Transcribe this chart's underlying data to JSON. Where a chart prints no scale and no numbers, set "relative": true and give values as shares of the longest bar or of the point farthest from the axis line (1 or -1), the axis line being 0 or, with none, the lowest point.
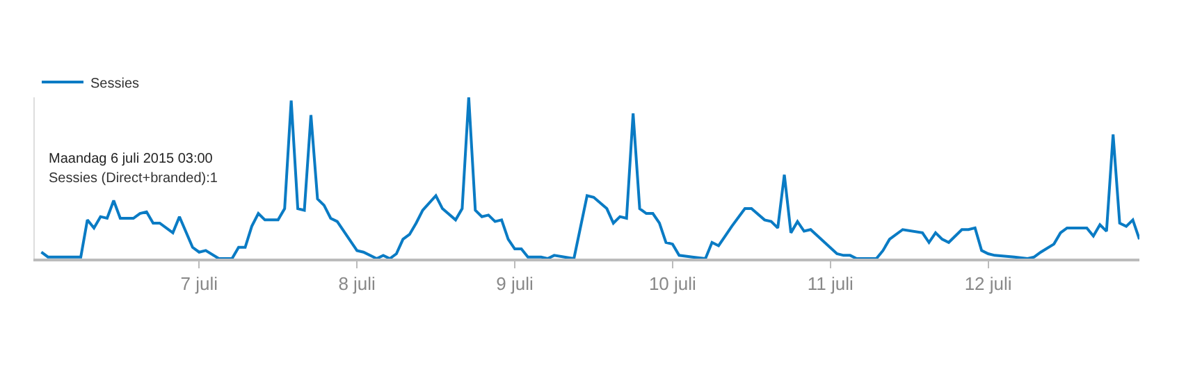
{
  "chart_data": {
    "type": "line",
    "relative": true,
    "legend": "top left",
    "marker": "none",
    "line_style": "solid",
    "x": [
      "2015-07-06T00:00",
      "2015-07-06T01:00",
      "2015-07-06T03:00",
      "2015-07-06T06:00",
      "2015-07-06T07:00",
      "2015-07-06T08:00",
      "2015-07-06T09:00",
      "2015-07-06T10:00",
      "2015-07-06T11:00",
      "2015-07-06T12:00",
      "2015-07-06T14:00",
      "2015-07-06T15:00",
      "2015-07-06T16:00",
      "2015-07-06T17:00",
      "2015-07-06T18:00",
      "2015-07-06T20:00",
      "2015-07-06T21:00",
      "2015-07-06T23:00",
      "2015-07-07T00:00",
      "2015-07-07T01:00",
      "2015-07-07T03:00",
      "2015-07-07T05:00",
      "2015-07-07T06:00",
      "2015-07-07T07:00",
      "2015-07-07T08:00",
      "2015-07-07T09:00",
      "2015-07-07T10:00",
      "2015-07-07T12:00",
      "2015-07-07T13:00",
      "2015-07-07T14:00",
      "2015-07-07T15:00",
      "2015-07-07T16:00",
      "2015-07-07T17:00",
      "2015-07-07T18:00",
      "2015-07-07T19:00",
      "2015-07-07T20:00",
      "2015-07-07T21:00",
      "2015-07-08T00:00",
      "2015-07-08T01:00",
      "2015-07-08T03:00",
      "2015-07-08T04:00",
      "2015-07-08T05:00",
      "2015-07-08T06:00",
      "2015-07-08T07:00",
      "2015-07-08T08:00",
      "2015-07-08T09:00",
      "2015-07-08T10:00",
      "2015-07-08T12:00",
      "2015-07-08T13:00",
      "2015-07-08T15:00",
      "2015-07-08T16:00",
      "2015-07-08T17:00",
      "2015-07-08T18:00",
      "2015-07-08T19:00",
      "2015-07-08T20:00",
      "2015-07-08T21:00",
      "2015-07-08T22:00",
      "2015-07-08T23:00",
      "2015-07-09T00:00",
      "2015-07-09T01:00",
      "2015-07-09T02:00",
      "2015-07-09T04:00",
      "2015-07-09T05:00",
      "2015-07-09T06:00",
      "2015-07-09T09:00",
      "2015-07-09T11:00",
      "2015-07-09T12:00",
      "2015-07-09T14:00",
      "2015-07-09T15:00",
      "2015-07-09T16:00",
      "2015-07-09T17:00",
      "2015-07-09T18:00",
      "2015-07-09T19:00",
      "2015-07-09T20:00",
      "2015-07-09T21:00",
      "2015-07-09T22:00",
      "2015-07-09T23:00",
      "2015-07-10T00:00",
      "2015-07-10T01:00",
      "2015-07-10T03:00",
      "2015-07-10T05:00",
      "2015-07-10T06:00",
      "2015-07-10T07:00",
      "2015-07-10T08:00",
      "2015-07-10T09:00",
      "2015-07-10T11:00",
      "2015-07-10T12:00",
      "2015-07-10T14:00",
      "2015-07-10T15:00",
      "2015-07-10T16:00",
      "2015-07-10T17:00",
      "2015-07-10T18:00",
      "2015-07-10T19:00",
      "2015-07-10T20:00",
      "2015-07-10T21:00",
      "2015-07-11T01:00",
      "2015-07-11T02:00",
      "2015-07-11T03:00",
      "2015-07-11T04:00",
      "2015-07-11T07:00",
      "2015-07-11T08:00",
      "2015-07-11T09:00",
      "2015-07-11T11:00",
      "2015-07-11T14:00",
      "2015-07-11T15:00",
      "2015-07-11T16:00",
      "2015-07-11T17:00",
      "2015-07-11T18:00",
      "2015-07-11T20:00",
      "2015-07-11T21:00",
      "2015-07-11T22:00",
      "2015-07-11T23:00",
      "2015-07-12T00:00",
      "2015-07-12T01:00",
      "2015-07-12T04:00",
      "2015-07-12T06:00",
      "2015-07-12T07:00",
      "2015-07-12T08:00",
      "2015-07-12T10:00",
      "2015-07-12T11:00",
      "2015-07-12T12:00",
      "2015-07-12T15:00",
      "2015-07-12T16:00",
      "2015-07-12T17:00",
      "2015-07-12T18:00",
      "2015-07-12T19:00",
      "2015-07-12T20:00",
      "2015-07-12T21:00",
      "2015-07-12T22:00",
      "2015-07-12T23:00"
    ],
    "series": [
      {
        "name": "Sessies",
        "color": "#0a7bc4",
        "values": [
          0.04,
          0.01,
          0.01,
          0.01,
          0.24,
          0.19,
          0.26,
          0.25,
          0.36,
          0.25,
          0.25,
          0.28,
          0.29,
          0.22,
          0.22,
          0.16,
          0.26,
          0.07,
          0.04,
          0.05,
          0.0,
          0.0,
          0.07,
          0.07,
          0.2,
          0.28,
          0.24,
          0.24,
          0.31,
          0.98,
          0.31,
          0.3,
          0.89,
          0.37,
          0.33,
          0.25,
          0.23,
          0.05,
          0.04,
          0.0,
          0.02,
          0.0,
          0.03,
          0.12,
          0.15,
          0.22,
          0.3,
          0.39,
          0.31,
          0.24,
          0.31,
          1.0,
          0.3,
          0.26,
          0.27,
          0.23,
          0.24,
          0.12,
          0.06,
          0.06,
          0.01,
          0.01,
          0.0,
          0.02,
          0.0,
          0.39,
          0.38,
          0.31,
          0.22,
          0.26,
          0.25,
          0.9,
          0.31,
          0.28,
          0.28,
          0.22,
          0.1,
          0.09,
          0.02,
          0.01,
          0.0,
          0.1,
          0.08,
          0.14,
          0.2,
          0.31,
          0.31,
          0.24,
          0.23,
          0.19,
          0.52,
          0.16,
          0.23,
          0.17,
          0.18,
          0.03,
          0.02,
          0.02,
          0.0,
          0.0,
          0.05,
          0.12,
          0.18,
          0.16,
          0.1,
          0.16,
          0.12,
          0.1,
          0.18,
          0.18,
          0.19,
          0.05,
          0.03,
          0.02,
          0.01,
          0.0,
          0.01,
          0.04,
          0.09,
          0.16,
          0.19,
          0.19,
          0.14,
          0.21,
          0.17,
          0.77,
          0.22,
          0.2,
          0.24,
          0.12
        ]
      }
    ],
    "xlim": [
      "2015-07-05T23:00",
      "2015-07-12T23:00"
    ],
    "xticks": [
      {
        "value": "2015-07-07T00:00",
        "label": "7 juli"
      },
      {
        "value": "2015-07-08T00:00",
        "label": "8 juli"
      },
      {
        "value": "2015-07-09T00:00",
        "label": "9 juli"
      },
      {
        "value": "2015-07-10T00:00",
        "label": "10 juli"
      },
      {
        "value": "2015-07-11T00:00",
        "label": "11 juli"
      },
      {
        "value": "2015-07-12T00:00",
        "label": "12 juli"
      }
    ],
    "tick_labels": "x",
    "annotations": [
      "Maandag 6 juli 2015 03:00",
      "Sessies (Direct+branded):1"
    ]
  }
}
